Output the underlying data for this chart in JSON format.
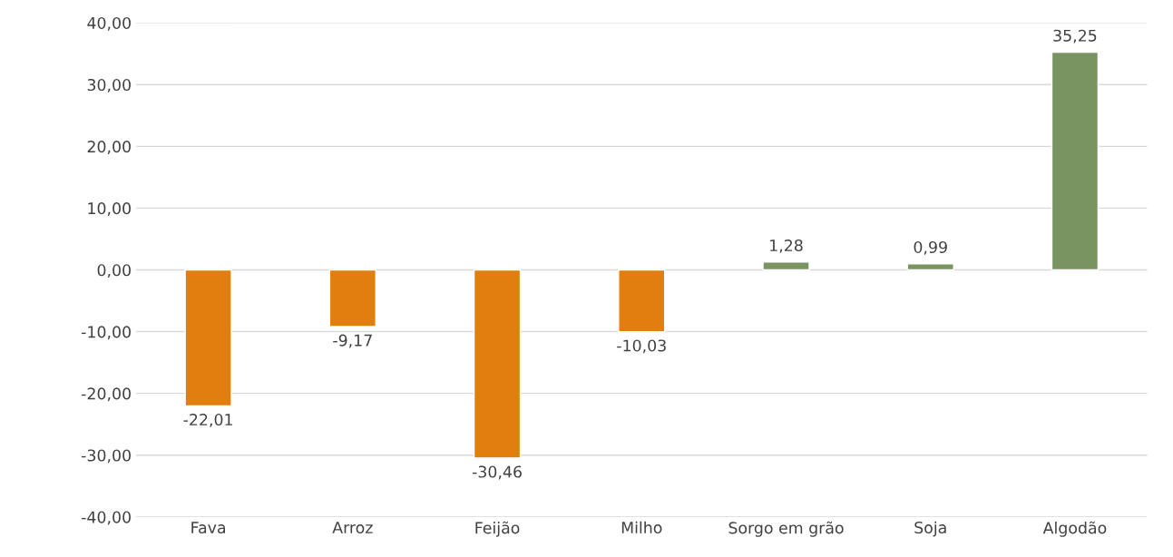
{
  "chart_data": {
    "type": "bar",
    "categories": [
      "Fava",
      "Arroz",
      "Feijão",
      "Milho",
      "Sorgo em grão",
      "Soja",
      "Algodão"
    ],
    "values": [
      -22.01,
      -9.17,
      -30.46,
      -10.03,
      1.28,
      0.99,
      35.25
    ],
    "colors": [
      "#e07f10",
      "#e07f10",
      "#e07f10",
      "#e07f10",
      "#7a9461",
      "#7a9461",
      "#7a9461"
    ],
    "value_labels": [
      "-22,01",
      "-9,17",
      "-30,46",
      "-10,03",
      "1,28",
      "0,99",
      "35,25"
    ],
    "ylim": [
      -40,
      40
    ],
    "yticks": [
      {
        "value": -40,
        "label": "-40,00"
      },
      {
        "value": -30,
        "label": "-30,00"
      },
      {
        "value": -20,
        "label": "-20,00"
      },
      {
        "value": -10,
        "label": "-10,00"
      },
      {
        "value": 0,
        "label": "0,00"
      },
      {
        "value": 10,
        "label": "10,00"
      },
      {
        "value": 20,
        "label": "20,00"
      },
      {
        "value": 30,
        "label": "30,00"
      },
      {
        "value": 40,
        "label": "40,00"
      }
    ],
    "grid": "y"
  }
}
